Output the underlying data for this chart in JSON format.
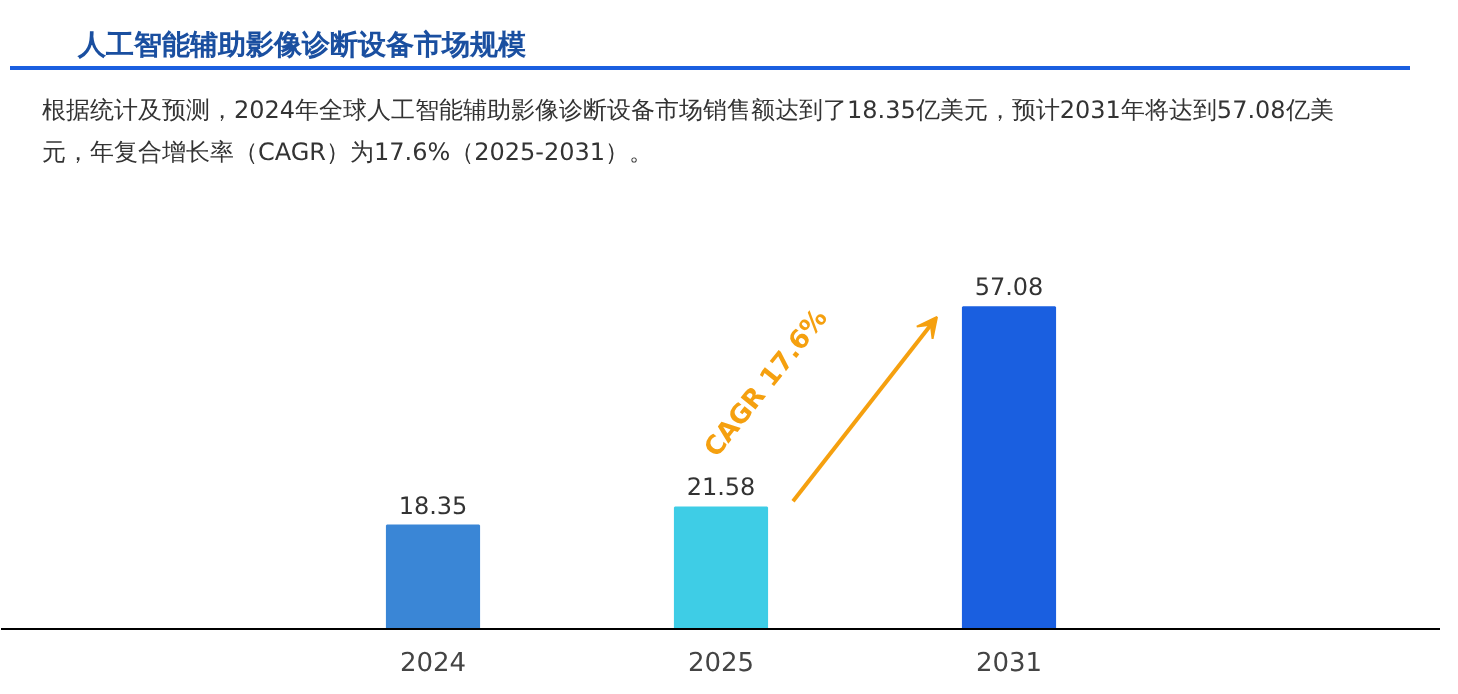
{
  "chart_data": {
    "type": "bar",
    "title": "人工智能辅助影像诊断设备市场规模",
    "subtitle": "根据统计及预测，2024年全球人工智能辅助影像诊断设备市场销售额达到了18.35亿美元，预计2031年将达到57.08亿美元，年复合增长率（CAGR）为17.6%（2025-2031）。",
    "categories": [
      "2024",
      "2025",
      "2031"
    ],
    "values": [
      18.35,
      21.58,
      57.08
    ],
    "colors": [
      "#3a86d6",
      "#3ecde6",
      "#1a5fe0"
    ],
    "data_labels": true,
    "annotations": [
      "CAGR 17.6%"
    ],
    "grid": false
  }
}
